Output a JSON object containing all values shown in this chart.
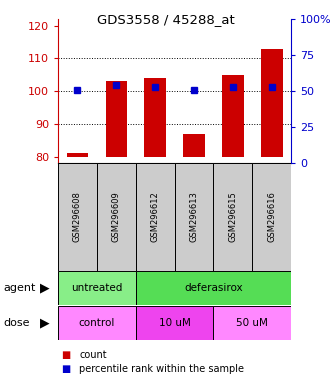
{
  "title": "GDS3558 / 45288_at",
  "samples": [
    "GSM296608",
    "GSM296609",
    "GSM296612",
    "GSM296613",
    "GSM296615",
    "GSM296616"
  ],
  "bar_bottoms": [
    80,
    80,
    80,
    80,
    80,
    80
  ],
  "bar_tops": [
    81,
    103,
    104,
    87,
    105,
    113
  ],
  "percentile_values": [
    51,
    54,
    53,
    51,
    53,
    53
  ],
  "ylim_left": [
    78,
    122
  ],
  "ylim_right": [
    0,
    100
  ],
  "yticks_left": [
    80,
    90,
    100,
    110,
    120
  ],
  "yticks_right": [
    0,
    25,
    50,
    75,
    100
  ],
  "bar_color": "#cc0000",
  "percentile_color": "#0000cc",
  "agent_groups": [
    {
      "label": "untreated",
      "start": 0,
      "end": 2
    },
    {
      "label": "deferasirox",
      "start": 2,
      "end": 6
    }
  ],
  "dose_groups": [
    {
      "label": "control",
      "start": 0,
      "end": 2
    },
    {
      "label": "10 uM",
      "start": 2,
      "end": 4
    },
    {
      "label": "50 uM",
      "start": 4,
      "end": 6
    }
  ],
  "agent_color_untreated": "#88ee88",
  "agent_color_deferasirox": "#55dd55",
  "dose_color_light": "#ff88ff",
  "dose_color_dark": "#ee44ee",
  "sample_box_color": "#cccccc",
  "bg_color": "#ffffff",
  "left_axis_color": "#cc0000",
  "right_axis_color": "#0000cc",
  "legend_count_label": "count",
  "legend_percentile_label": "percentile rank within the sample"
}
